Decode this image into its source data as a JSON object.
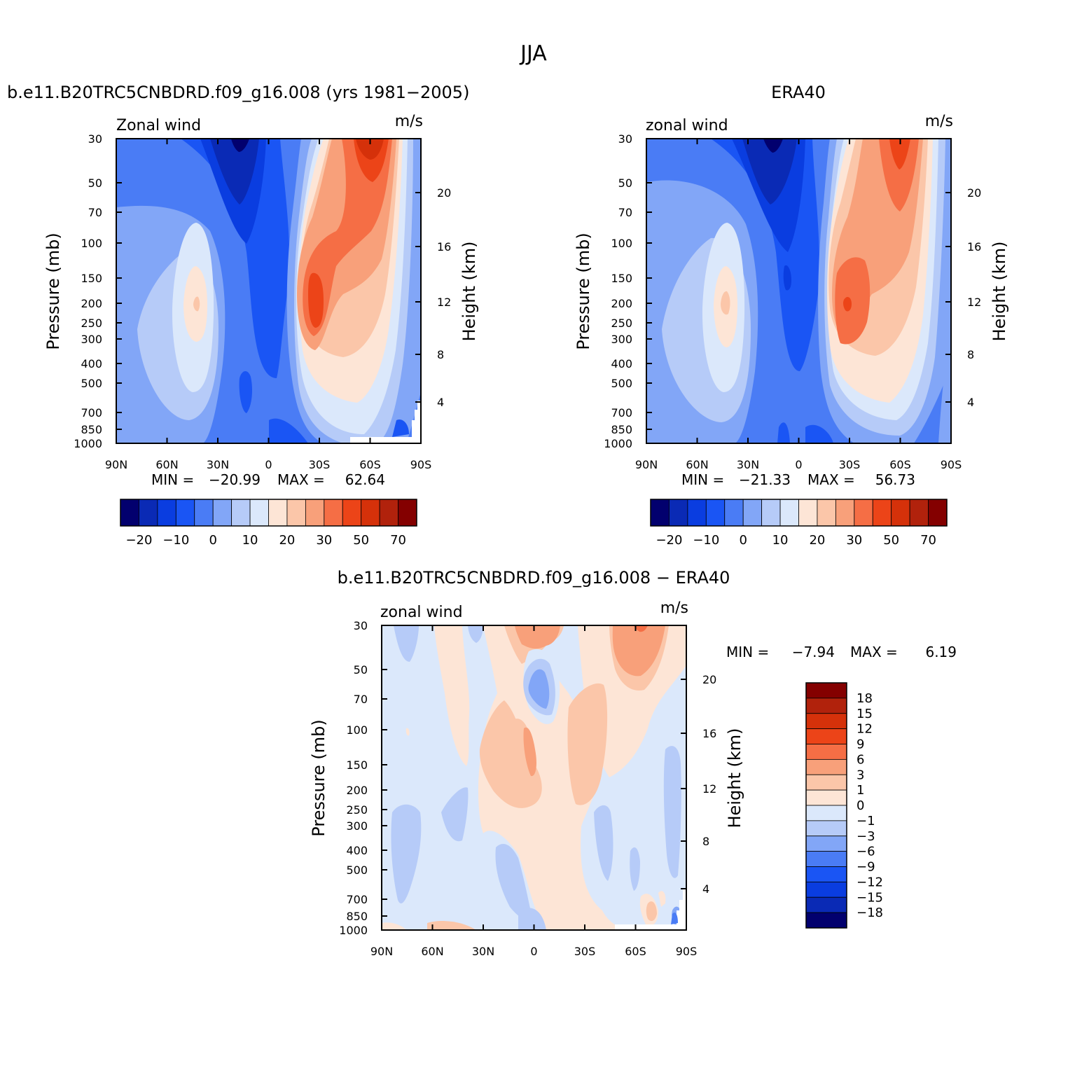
{
  "figure_title": "JJA",
  "chart_data": [
    {
      "type": "heatmap",
      "title": "b.e11.B20TRC5CNBDRD.f09_g16.008 (yrs 1981−2005)",
      "variable_label": "Zonal wind",
      "units_label": "m/s",
      "ylabel": "Pressure (mb)",
      "ylabel_right": "Height (km)",
      "x_ticks": [
        "90N",
        "60N",
        "30N",
        "0",
        "30S",
        "60S",
        "90S"
      ],
      "y_ticks": [
        30,
        50,
        70,
        100,
        150,
        200,
        250,
        300,
        400,
        500,
        700,
        850,
        1000
      ],
      "y_right_ticks": [
        20,
        16,
        12,
        8,
        4
      ],
      "ylim": [
        1000,
        30
      ],
      "log_scale_y": true,
      "min_label": "MIN =",
      "min_value": "−20.99",
      "max_label": "MAX =",
      "max_value": "62.64",
      "colorbar_labels": [
        "−20",
        "−10",
        "0",
        "10",
        "20",
        "30",
        "50",
        "70"
      ],
      "colorbar_colors": [
        "#02006e",
        "#0a2ab5",
        "#0a3de0",
        "#1a55f4",
        "#4a7cf5",
        "#82a6f7",
        "#b6cbf8",
        "#dbe8fb",
        "#fde5d6",
        "#fbc6a9",
        "#f8a07a",
        "#f56e45",
        "#ec4418",
        "#d5310a",
        "#b1220c",
        "#840000"
      ],
      "jet_max_location": "about 30S, 200 mb",
      "easterly_min_location": "about 15N, 30 mb"
    },
    {
      "type": "heatmap",
      "title": "ERA40",
      "variable_label": "zonal wind",
      "units_label": "m/s",
      "ylabel": "Pressure (mb)",
      "ylabel_right": "Height (km)",
      "x_ticks": [
        "90N",
        "60N",
        "30N",
        "0",
        "30S",
        "60S",
        "90S"
      ],
      "y_ticks": [
        30,
        50,
        70,
        100,
        150,
        200,
        250,
        300,
        400,
        500,
        700,
        850,
        1000
      ],
      "y_right_ticks": [
        20,
        16,
        12,
        8,
        4
      ],
      "ylim": [
        1000,
        30
      ],
      "log_scale_y": true,
      "min_label": "MIN =",
      "min_value": "−21.33",
      "max_label": "MAX =",
      "max_value": "56.73",
      "colorbar_labels": [
        "−20",
        "−10",
        "0",
        "10",
        "20",
        "30",
        "50",
        "70"
      ],
      "colorbar_colors": [
        "#02006e",
        "#0a2ab5",
        "#0a3de0",
        "#1a55f4",
        "#4a7cf5",
        "#82a6f7",
        "#b6cbf8",
        "#dbe8fb",
        "#fde5d6",
        "#fbc6a9",
        "#f8a07a",
        "#f56e45",
        "#ec4418",
        "#d5310a",
        "#b1220c",
        "#840000"
      ]
    },
    {
      "type": "heatmap",
      "title": "b.e11.B20TRC5CNBDRD.f09_g16.008 − ERA40",
      "variable_label": "zonal wind",
      "units_label": "m/s",
      "ylabel": "Pressure (mb)",
      "ylabel_right": "Height (km)",
      "x_ticks": [
        "90N",
        "60N",
        "30N",
        "0",
        "30S",
        "60S",
        "90S"
      ],
      "y_ticks": [
        30,
        50,
        70,
        100,
        150,
        200,
        250,
        300,
        400,
        500,
        700,
        850,
        1000
      ],
      "y_right_ticks": [
        20,
        16,
        12,
        8,
        4
      ],
      "ylim": [
        1000,
        30
      ],
      "log_scale_y": true,
      "min_label": "MIN =",
      "min_value": "−7.94",
      "max_label": "MAX =",
      "max_value": "6.19",
      "colorbar_labels": [
        "18",
        "15",
        "12",
        "9",
        "6",
        "3",
        "1",
        "0",
        "−1",
        "−3",
        "−6",
        "−9",
        "−12",
        "−15",
        "−18"
      ],
      "colorbar_colors": [
        "#840000",
        "#b1220c",
        "#d5310a",
        "#ec4418",
        "#f56e45",
        "#f8a07a",
        "#fbc6a9",
        "#fde5d6",
        "#dbe8fb",
        "#b6cbf8",
        "#82a6f7",
        "#4a7cf5",
        "#1a55f4",
        "#0a3de0",
        "#0a2ab5",
        "#02006e"
      ]
    }
  ]
}
